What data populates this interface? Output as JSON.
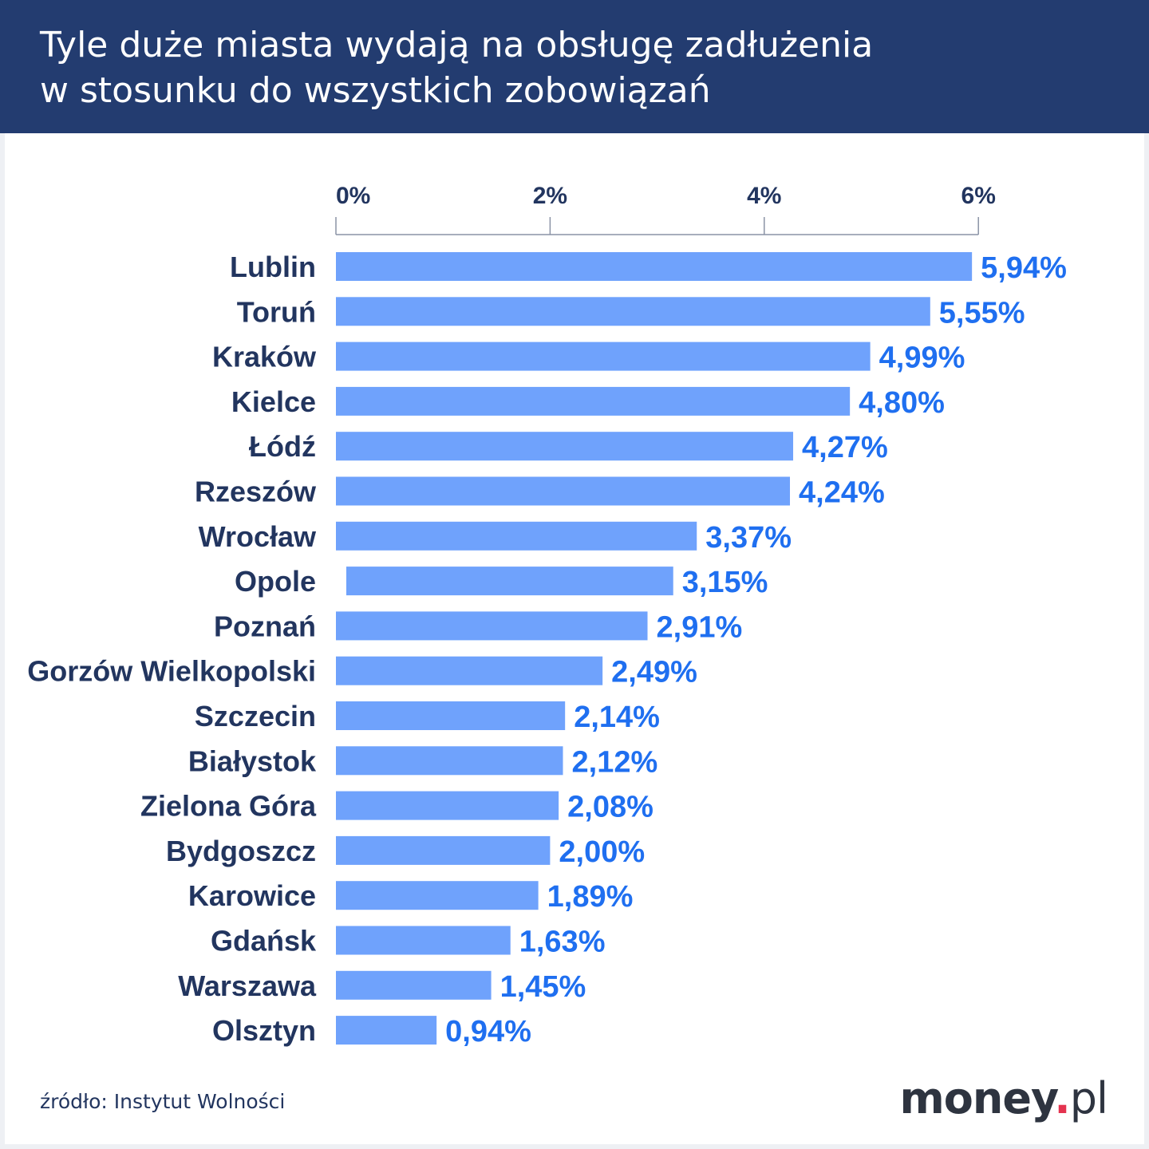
{
  "header": {
    "title_line1": "Tyle duże miasta wydają na obsługę zadłużenia",
    "title_line2": "w stosunku do wszystkich zobowiązań"
  },
  "footer": {
    "source": "źródło: Instytut Wolności",
    "logo_main": "money",
    "logo_dot": ".",
    "logo_tld": "pl"
  },
  "colors": {
    "header_bg": "#233c70",
    "bar": "#6fa2fc",
    "value_label": "#1f6ff0",
    "category_label": "#22355f",
    "logo_dot": "#e4334f"
  },
  "chart_data": {
    "type": "bar",
    "orientation": "horizontal",
    "title": "Tyle duże miasta wydają na obsługę zadłużenia w stosunku do wszystkich zobowiązań",
    "xlim": [
      0,
      6
    ],
    "ticks": [
      0,
      2,
      4,
      6
    ],
    "tick_labels": [
      "0%",
      "2%",
      "4%",
      "6%"
    ],
    "axis_position": "top",
    "grid": false,
    "categories": [
      "Lublin",
      "Toruń",
      "Kraków",
      "Kielce",
      "Łódź",
      "Rzeszów",
      "Wrocław",
      "Opole",
      "Poznań",
      "Gorzów Wielkopolski",
      "Szczecin",
      "Białystok",
      "Zielona Góra",
      "Bydgoszcz",
      "Karowice",
      "Gdańsk",
      "Warszawa",
      "Olsztyn"
    ],
    "values": [
      5.94,
      5.55,
      4.99,
      4.8,
      4.27,
      4.24,
      3.37,
      3.15,
      2.91,
      2.49,
      2.14,
      2.12,
      2.08,
      2.0,
      1.89,
      1.63,
      1.45,
      0.94
    ],
    "value_labels": [
      "5,94%",
      "5,55%",
      "4,99%",
      "4,80%",
      "4,27%",
      "4,24%",
      "3,37%",
      "3,15%",
      "2,91%",
      "2,49%",
      "2,14%",
      "2,12%",
      "2,08%",
      "2,00%",
      "1,89%",
      "1,63%",
      "1,45%",
      "0,94%"
    ]
  }
}
